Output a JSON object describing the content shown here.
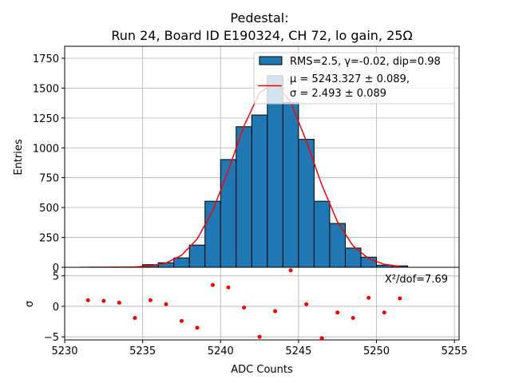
{
  "chart_data": {
    "type": "bar",
    "title_line1": "Pedestal:",
    "title_line2": "Run 24, Board ID E190324, CH 72, lo gain, 25Ω",
    "xlabel": "ADC Counts",
    "ylabel": "Entries",
    "residual_ylabel": "σ",
    "xlim": [
      5230,
      5255.3
    ],
    "ylim": [
      0,
      1850
    ],
    "residual_ylim": [
      -5.5,
      6.4
    ],
    "grid": true,
    "xticks": [
      "5230",
      "5235",
      "5240",
      "5245",
      "5250",
      "5255"
    ],
    "xtick_values": [
      5230,
      5235,
      5240,
      5245,
      5250,
      5255
    ],
    "yticks": [
      "0",
      "250",
      "500",
      "750",
      "1000",
      "1250",
      "1500",
      "1750"
    ],
    "ytick_values": [
      0,
      250,
      500,
      750,
      1000,
      1250,
      1500,
      1750
    ],
    "residual_yticks": [
      "−5",
      "0",
      "5"
    ],
    "residual_ytick_values": [
      -5,
      0,
      5
    ],
    "bin_width": 1,
    "bin_edges_left": [
      5231,
      5232,
      5233,
      5234,
      5235,
      5236,
      5237,
      5238,
      5239,
      5240,
      5241,
      5242,
      5243,
      5244,
      5245,
      5246,
      5247,
      5248,
      5249,
      5250,
      5251
    ],
    "values": [
      1,
      1,
      2,
      4,
      22,
      38,
      79,
      186,
      553,
      902,
      1177,
      1275,
      1604,
      1380,
      1071,
      553,
      367,
      161,
      85,
      18,
      12
    ],
    "bar_color": "#1f77b4",
    "fit": {
      "mu": 5243.327,
      "sigma": 2.493,
      "amplitude": 1545,
      "x_start": 5231.5,
      "x_end": 5251.5,
      "color": "#ff0000"
    },
    "residuals": {
      "x": [
        5231.5,
        5232.5,
        5233.5,
        5234.5,
        5235.5,
        5236.5,
        5237.5,
        5238.5,
        5239.5,
        5240.5,
        5241.5,
        5242.5,
        5243.5,
        5244.5,
        5245.5,
        5246.5,
        5247.5,
        5248.5,
        5249.5,
        5250.5,
        5251.5
      ],
      "y": [
        1.0,
        0.9,
        0.6,
        -1.9,
        1.0,
        0.35,
        -2.4,
        -3.5,
        3.5,
        3.1,
        -0.2,
        -5.0,
        -0.8,
        5.9,
        0.35,
        -5.2,
        -1.0,
        -1.9,
        1.4,
        -1.0,
        1.3
      ],
      "color": "#ff0000"
    },
    "legend": {
      "placement": "top-right",
      "hist_label": "RMS=2.5, γ=-0.02, dip=0.98",
      "fit_label_line1": "μ = 5243.327 ± 0.089,",
      "fit_label_line2": "σ = 2.493 ± 0.089"
    },
    "chi2_annotation": "X²/dof=7.69"
  }
}
